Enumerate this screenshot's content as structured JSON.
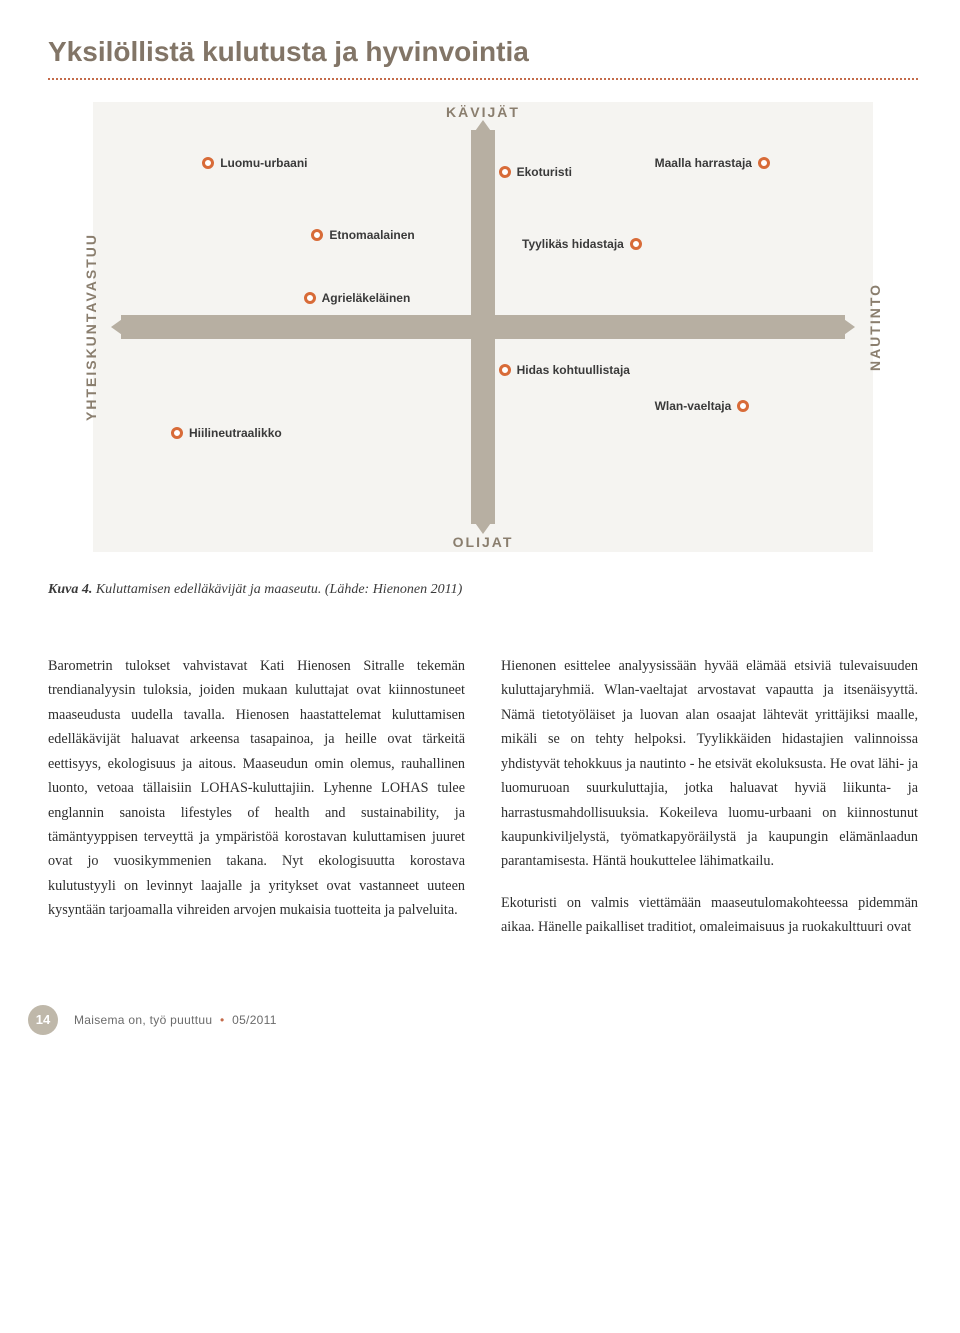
{
  "title": "Yksilöllistä kulutusta ja hyvinvointia",
  "chart": {
    "type": "scatter",
    "background_color": "#f5f4f1",
    "axis_bar_color": "#b7afa2",
    "marker_border_color": "#d86b38",
    "marker_fill_color": "#ffffff",
    "axis_label_color": "#8a7e6e",
    "axis_label_fontsize": 14,
    "point_label_fontsize": 12,
    "axes": {
      "top": "KÄVIJÄT",
      "bottom": "OLIJAT",
      "left": "YHTEISKUNTAVASTUU",
      "right": "NAUTINTO"
    },
    "points": [
      {
        "label": "Luomu-urbaani",
        "left_pct": 14,
        "top_pct": 12,
        "mark_side": "left"
      },
      {
        "label": "Ekoturisti",
        "left_pct": 52,
        "top_pct": 14,
        "mark_side": "left"
      },
      {
        "label": "Maalla harrastaja",
        "left_pct": 72,
        "top_pct": 12,
        "mark_side": "right"
      },
      {
        "label": "Etnomaalainen",
        "left_pct": 28,
        "top_pct": 28,
        "mark_side": "left"
      },
      {
        "label": "Tyylikäs hidastaja",
        "left_pct": 55,
        "top_pct": 30,
        "mark_side": "right"
      },
      {
        "label": "Agrieläkeläinen",
        "left_pct": 27,
        "top_pct": 42,
        "mark_side": "left"
      },
      {
        "label": "Hidas kohtuullistaja",
        "left_pct": 52,
        "top_pct": 58,
        "mark_side": "left"
      },
      {
        "label": "Wlan-vaeltaja",
        "left_pct": 72,
        "top_pct": 66,
        "mark_side": "right"
      },
      {
        "label": "Hiilineutraalikko",
        "left_pct": 10,
        "top_pct": 72,
        "mark_side": "left"
      }
    ]
  },
  "caption_bold": "Kuva 4.",
  "caption_rest": " Kuluttamisen edelläkävijät ja maaseutu. (Lähde: Hienonen 2011)",
  "body": {
    "col1_p1": "Barometrin tulokset vahvistavat Kati Hienosen Sitralle tekemän trendianalyysin tuloksia, joiden mukaan kuluttajat ovat kiinnostuneet maaseudusta uudella tavalla. Hienosen haastattelemat kuluttamisen edelläkävijät haluavat arkeensa tasapainoa, ja heille ovat tärkeitä eettisyys, ekologisuus ja aitous. Maaseudun omin olemus, rauhallinen luonto, vetoaa tällaisiin LOHAS-kuluttajiin. Lyhenne LOHAS tulee englannin sanoista lifestyles of health and sustainability, ja tämäntyyppisen terveyttä ja ympäristöä korostavan kuluttamisen juuret ovat jo vuosikymmenien takana. Nyt ekologisuutta korostava kulutustyyli on levinnyt laajalle ja yritykset ovat vastanneet uuteen kysyntään tarjoamalla vihreiden arvojen mukaisia tuotteita ja palveluita.",
    "col2_p1": "Hienonen esittelee analyysissään hyvää elämää etsiviä tulevaisuuden kuluttajaryhmiä. Wlan-vaeltajat arvostavat vapautta ja itsenäisyyttä. Nämä tietotyöläiset ja luovan alan osaajat lähtevät yrittäjiksi maalle, mikäli se on tehty helpoksi. Tyylikkäiden hidastajien valinnoissa yhdistyvät tehokkuus ja nautinto - he etsivät ekoluksusta. He ovat lähi- ja luomuruoan suurkuluttajia, jotka haluavat hyviä liikunta- ja harrastusmahdollisuuksia. Kokeileva luomu-urbaani on kiinnostunut kaupunkiviljelystä, työmatkapyöräilystä ja kaupungin elämänlaadun parantamisesta. Häntä houkuttelee lähimatkailu.",
    "col2_p2": "Ekoturisti on valmis viettämään maaseutulomakohteessa pidemmän aikaa. Hänelle paikalliset traditiot, omaleimaisuus ja ruokakulttuuri ovat"
  },
  "footer": {
    "page_number": "14",
    "text_left": "Maisema on, työ puuttuu",
    "text_right": "05/2011"
  },
  "colors": {
    "title_color": "#827567",
    "dotted_rule_color": "#c46b4b",
    "body_text_color": "#2e2e2e",
    "page_badge_bg": "#bfb8aa"
  }
}
